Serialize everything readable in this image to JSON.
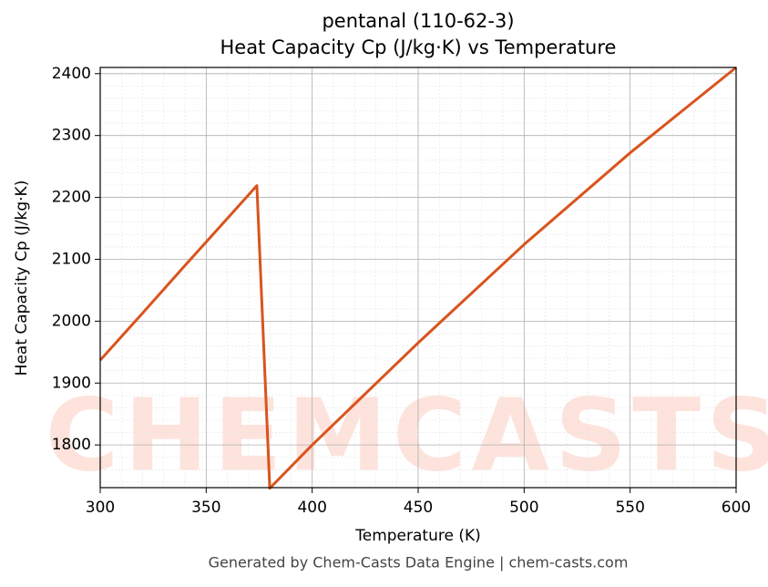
{
  "chart_data": {
    "type": "line",
    "title": "pentanal (110-62-3)",
    "subtitle": "Heat Capacity Cp (J/kg·K) vs Temperature",
    "x_label": "Temperature (K)",
    "y_label": "Heat Capacity Cp (J/kg·K)",
    "footer": "Generated by Chem-Casts Data Engine | chem-casts.com",
    "watermark": "CHEMCASTS",
    "x": [
      300,
      320,
      340,
      360,
      373.9,
      380,
      400,
      450,
      500,
      550,
      600
    ],
    "series": [
      {
        "name": "Cp",
        "color": "#d9541e",
        "values": [
          1937,
          2013,
          2090,
          2166,
          2219,
          1730,
          1800,
          1965,
          2124,
          2272,
          2410
        ]
      }
    ],
    "xlim": [
      300,
      600
    ],
    "ylim": [
      1731,
      2410
    ],
    "xticks": [
      300,
      350,
      400,
      450,
      500,
      550,
      600
    ],
    "yticks": [
      1800,
      1900,
      2000,
      2100,
      2200,
      2300,
      2400
    ],
    "grid": true
  }
}
